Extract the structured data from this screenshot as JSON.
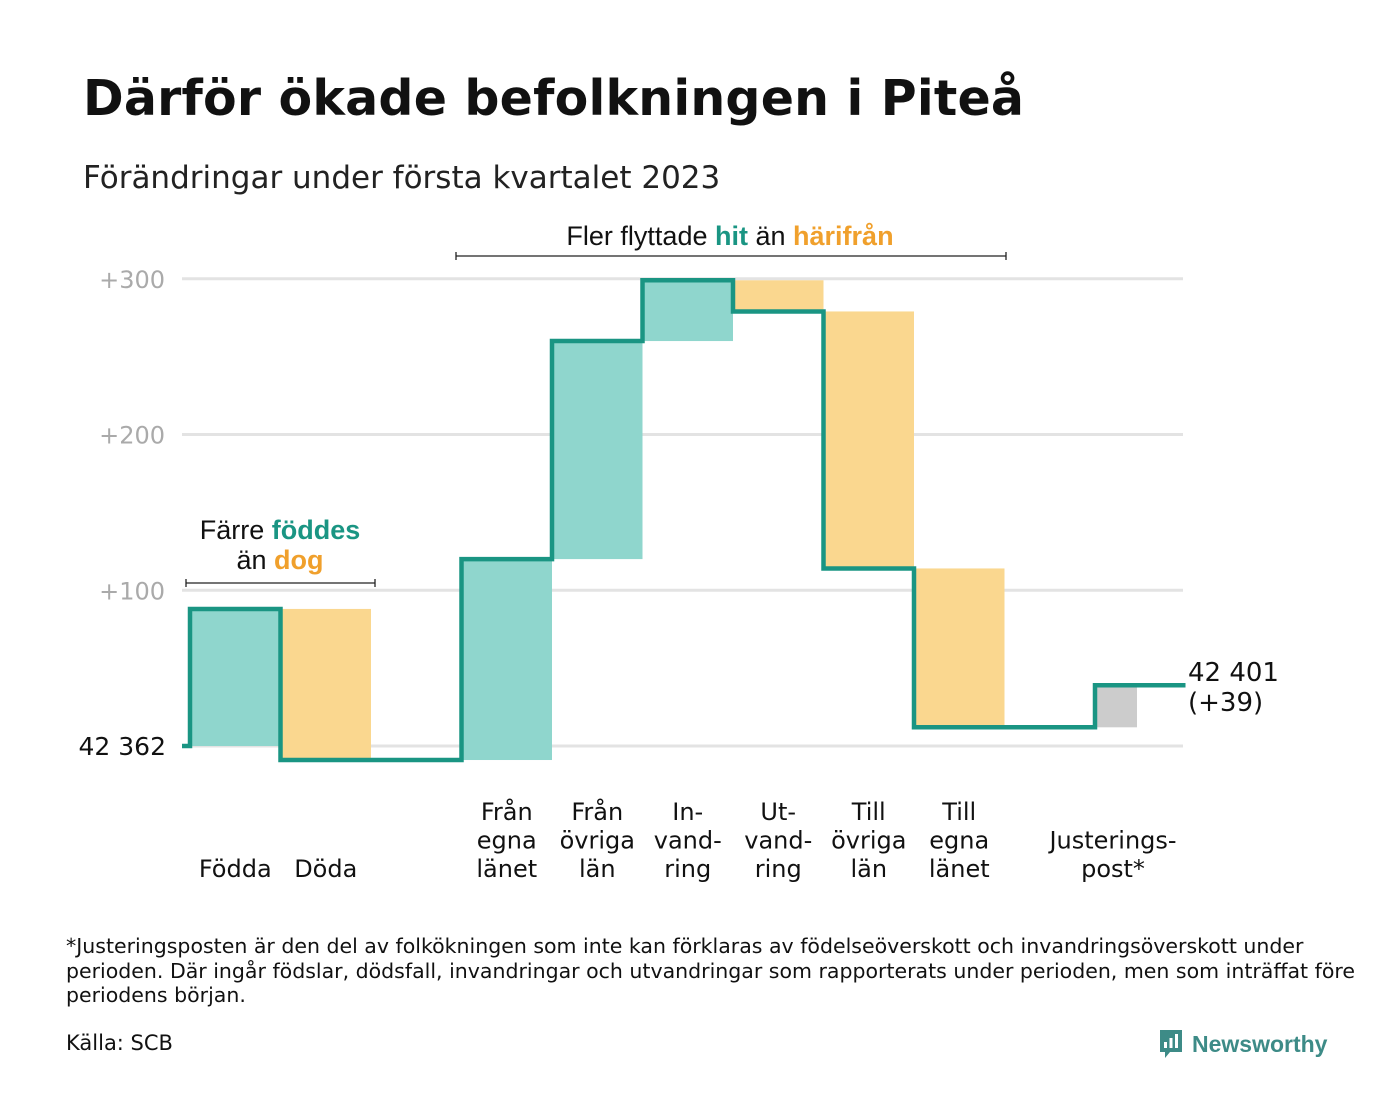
{
  "header": {
    "title": "Därför ökade befolkningen i Piteå",
    "subtitle": "Förändringar under första kvartalet 2023"
  },
  "colors": {
    "line": "#1a9583",
    "inflow": "#8fd6cd",
    "outflow": "#fad78f",
    "adjustment": "#cccccc",
    "grid": "#e3e3e3",
    "tick": "#aaaaaa",
    "accent_in": "#1a9583",
    "accent_out": "#f0a02c"
  },
  "chart_data": {
    "type": "waterfall",
    "start_value": 42362,
    "start_label": "42 362",
    "end_label": "42 401",
    "end_change_label": "(+39)",
    "y_ticks": [
      {
        "value": 100,
        "label": "+100"
      },
      {
        "value": 200,
        "label": "+200"
      },
      {
        "value": 300,
        "label": "+300"
      }
    ],
    "ylim": [
      -10,
      310
    ],
    "steps": [
      {
        "label_lines": [
          "Födda"
        ],
        "from": 0,
        "to": 88,
        "kind": "inflow"
      },
      {
        "label_lines": [
          "Döda"
        ],
        "from": 88,
        "to": -9,
        "kind": "outflow"
      },
      {
        "label_lines": [],
        "from": -9,
        "to": -9,
        "kind": "gap"
      },
      {
        "label_lines": [
          "Från",
          "egna",
          "länet"
        ],
        "from": -9,
        "to": 120,
        "kind": "inflow"
      },
      {
        "label_lines": [
          "Från",
          "övriga",
          "län"
        ],
        "from": 120,
        "to": 260,
        "kind": "inflow"
      },
      {
        "label_lines": [
          "In-",
          "vand-",
          "ring"
        ],
        "from": 260,
        "to": 299,
        "kind": "inflow"
      },
      {
        "label_lines": [
          "Ut-",
          "vand-",
          "ring"
        ],
        "from": 299,
        "to": 279,
        "kind": "outflow"
      },
      {
        "label_lines": [
          "Till",
          "övriga",
          "län"
        ],
        "from": 279,
        "to": 114,
        "kind": "outflow"
      },
      {
        "label_lines": [
          "Till",
          "egna",
          "länet"
        ],
        "from": 114,
        "to": 12,
        "kind": "outflow"
      },
      {
        "label_lines": [],
        "from": 12,
        "to": 12,
        "kind": "gap"
      },
      {
        "label_lines": [
          "Justerings-",
          "post*"
        ],
        "from": 12,
        "to": 39,
        "kind": "adjustment"
      }
    ],
    "annotations": [
      {
        "id": "births",
        "parts": [
          {
            "text": "Färre ",
            "style": "plain"
          },
          {
            "text": "föddes",
            "style": "in"
          },
          {
            "text": "än ",
            "style": "plain",
            "newline": true
          },
          {
            "text": "dog",
            "style": "out"
          }
        ]
      },
      {
        "id": "moves",
        "parts": [
          {
            "text": "Fler flyttade ",
            "style": "plain"
          },
          {
            "text": "hit",
            "style": "in"
          },
          {
            "text": " än ",
            "style": "plain"
          },
          {
            "text": "härifrån",
            "style": "out"
          }
        ]
      }
    ]
  },
  "footnote": "*Justeringsposten är den del av folkökningen som inte kan förklaras av födelseöverskott och invandringsöverskott under perioden. Där ingår födslar, dödsfall, invandringar och utvandringar som rapporterats under perioden, men som inträffat före periodens början.",
  "source": "Källa: SCB",
  "logo": {
    "text": "Newsworthy",
    "icon": "newsworthy-logo-icon"
  }
}
